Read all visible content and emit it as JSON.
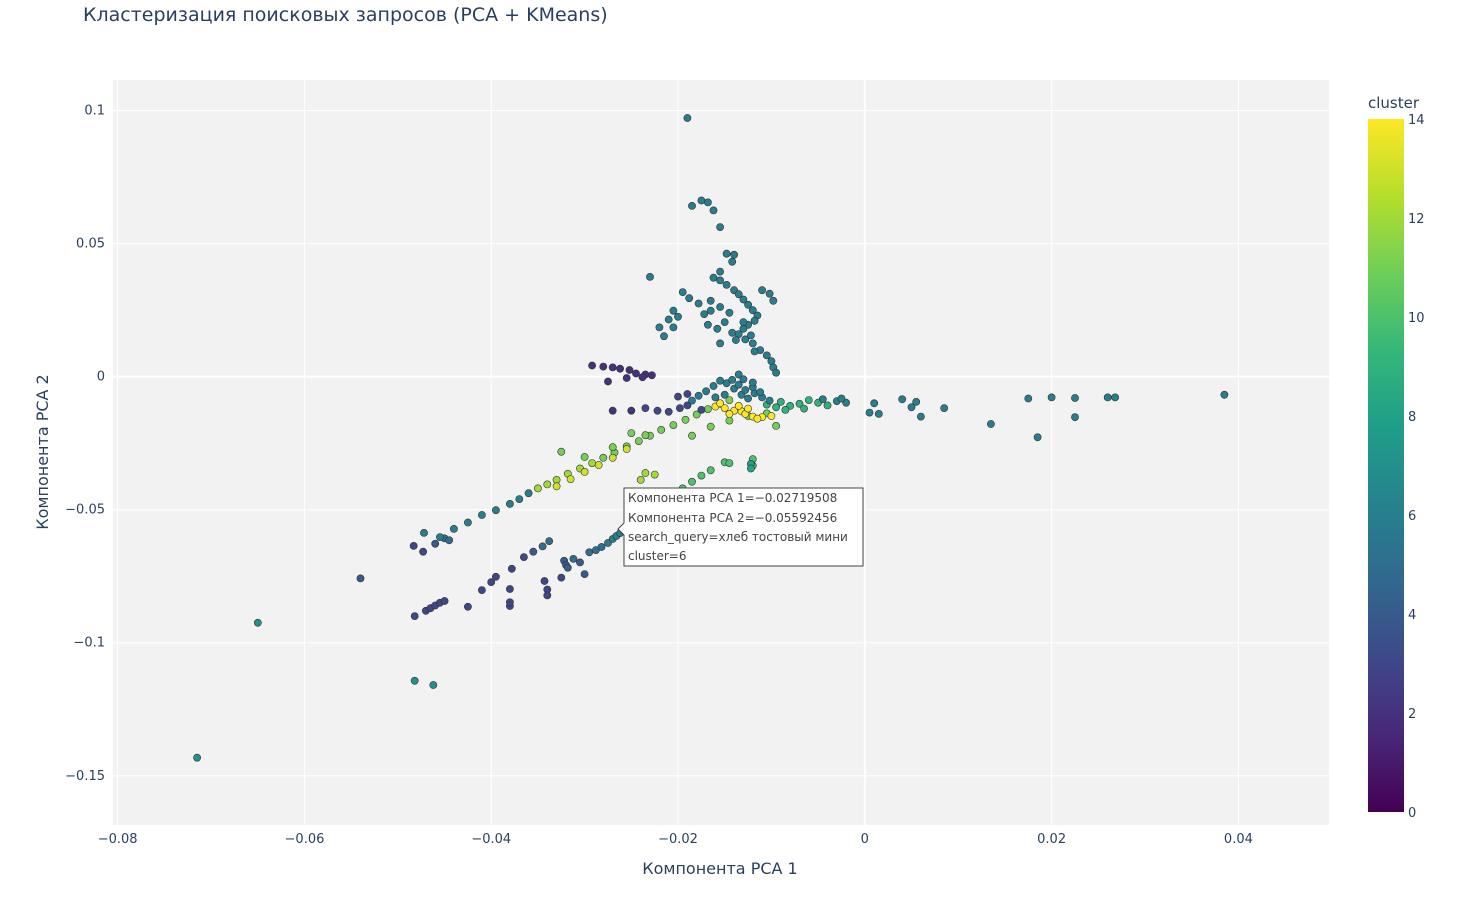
{
  "chart_data": {
    "type": "scatter",
    "title": "Кластеризация поисковых запросов (PCA + KMeans)",
    "xlabel": "Компонента PCA 1",
    "ylabel": "Компонента PCA 2",
    "xlim": [
      -0.0805,
      0.0497
    ],
    "ylim": [
      -0.1685,
      0.1115
    ],
    "x_ticks": [
      -0.08,
      -0.06,
      -0.04,
      -0.02,
      0,
      0.02,
      0.04
    ],
    "x_tick_labels": [
      "−0.08",
      "−0.06",
      "−0.04",
      "−0.02",
      "0",
      "0.02",
      "0.04"
    ],
    "y_ticks": [
      -0.15,
      -0.1,
      -0.05,
      0,
      0.05,
      0.1
    ],
    "y_tick_labels": [
      "−0.15",
      "−0.1",
      "−0.05",
      "0",
      "0.05",
      "0.1"
    ],
    "grid": true,
    "colorbar": {
      "title": "cluster",
      "min": 0,
      "max": 14,
      "ticks": [
        0,
        2,
        4,
        6,
        8,
        10,
        12,
        14
      ],
      "tick_labels": [
        "0",
        "2",
        "4",
        "6",
        "8",
        "10",
        "12",
        "14"
      ],
      "colorscale": [
        "#440154",
        "#482878",
        "#3e4989",
        "#31688e",
        "#26828e",
        "#1f9e89",
        "#35b779",
        "#6ece58",
        "#b5de2b",
        "#fde725"
      ]
    },
    "point_columns": [
      "x",
      "y",
      "cluster"
    ],
    "points": [
      [
        -0.0715,
        -0.1432,
        7
      ],
      [
        -0.065,
        -0.0925,
        7
      ],
      [
        -0.054,
        -0.0758,
        4
      ],
      [
        -0.0482,
        -0.1143,
        7
      ],
      [
        -0.0462,
        -0.1159,
        7
      ],
      [
        -0.0482,
        -0.09,
        3
      ],
      [
        -0.047,
        -0.088,
        3
      ],
      [
        -0.0465,
        -0.087,
        3
      ],
      [
        -0.046,
        -0.086,
        3
      ],
      [
        -0.0455,
        -0.085,
        3
      ],
      [
        -0.045,
        -0.0843,
        3
      ],
      [
        -0.0425,
        -0.0865,
        3
      ],
      [
        -0.0483,
        -0.0636,
        3
      ],
      [
        -0.0473,
        -0.0658,
        3
      ],
      [
        -0.046,
        -0.0628,
        4
      ],
      [
        -0.045,
        -0.0608,
        5
      ],
      [
        -0.0445,
        -0.0615,
        5
      ],
      [
        -0.041,
        -0.0802,
        3
      ],
      [
        -0.04,
        -0.0772,
        3
      ],
      [
        -0.0395,
        -0.0752,
        3
      ],
      [
        -0.038,
        -0.0798,
        3
      ],
      [
        -0.038,
        -0.0862,
        3
      ],
      [
        -0.038,
        -0.0848,
        3
      ],
      [
        -0.0378,
        -0.0722,
        3
      ],
      [
        -0.0365,
        -0.0678,
        3
      ],
      [
        -0.0355,
        -0.0658,
        4
      ],
      [
        -0.0345,
        -0.0638,
        5
      ],
      [
        -0.0343,
        -0.0768,
        3
      ],
      [
        -0.034,
        -0.08,
        3
      ],
      [
        -0.034,
        -0.0822,
        3
      ],
      [
        -0.0338,
        -0.0618,
        5
      ],
      [
        -0.0325,
        -0.0755,
        3
      ],
      [
        -0.0322,
        -0.0692,
        4
      ],
      [
        -0.032,
        -0.0708,
        4
      ],
      [
        -0.0318,
        -0.0718,
        4
      ],
      [
        -0.0312,
        -0.0685,
        5
      ],
      [
        -0.0305,
        -0.0698,
        4
      ],
      [
        -0.03,
        -0.0742,
        4
      ],
      [
        -0.0295,
        -0.066,
        5
      ],
      [
        -0.0288,
        -0.0652,
        5
      ],
      [
        -0.0282,
        -0.064,
        5
      ],
      [
        -0.0275,
        -0.0625,
        6
      ],
      [
        -0.027,
        -0.061,
        6
      ],
      [
        -0.0266,
        -0.0599,
        6
      ],
      [
        -0.0262,
        -0.0588,
        6
      ],
      [
        -0.0258,
        -0.0578,
        6
      ],
      [
        -0.0252,
        -0.0564,
        6
      ],
      [
        -0.0247,
        -0.0552,
        6
      ],
      [
        -0.0245,
        -0.0545,
        9
      ],
      [
        -0.024,
        -0.0532,
        9
      ],
      [
        -0.0235,
        -0.052,
        9
      ],
      [
        -0.0225,
        -0.0492,
        10
      ],
      [
        -0.0215,
        -0.0462,
        10
      ],
      [
        -0.0205,
        -0.044,
        10
      ],
      [
        -0.0195,
        -0.042,
        10
      ],
      [
        -0.0185,
        -0.0395,
        10
      ],
      [
        -0.0175,
        -0.0372,
        10
      ],
      [
        -0.0165,
        -0.0352,
        10
      ],
      [
        -0.015,
        -0.0322,
        10
      ],
      [
        -0.0145,
        -0.0325,
        10
      ],
      [
        -0.012,
        -0.0335,
        10
      ],
      [
        -0.012,
        -0.031,
        10
      ],
      [
        -0.0472,
        -0.0587,
        6
      ],
      [
        -0.0455,
        -0.0603,
        6
      ],
      [
        -0.044,
        -0.0572,
        6
      ],
      [
        -0.0425,
        -0.0548,
        6
      ],
      [
        -0.041,
        -0.052,
        6
      ],
      [
        -0.0395,
        -0.0502,
        6
      ],
      [
        -0.038,
        -0.0478,
        6
      ],
      [
        -0.037,
        -0.046,
        6
      ],
      [
        -0.036,
        -0.0438,
        6
      ],
      [
        -0.035,
        -0.042,
        12
      ],
      [
        -0.034,
        -0.0405,
        12
      ],
      [
        -0.033,
        -0.0388,
        12
      ],
      [
        -0.0318,
        -0.0365,
        12
      ],
      [
        -0.0305,
        -0.0345,
        12
      ],
      [
        -0.0292,
        -0.0325,
        12
      ],
      [
        -0.028,
        -0.0305,
        11
      ],
      [
        -0.0268,
        -0.0285,
        11
      ],
      [
        -0.0255,
        -0.0262,
        11
      ],
      [
        -0.0242,
        -0.0242,
        11
      ],
      [
        -0.023,
        -0.0222,
        11
      ],
      [
        -0.0218,
        -0.02,
        11
      ],
      [
        -0.0205,
        -0.0182,
        11
      ],
      [
        -0.0192,
        -0.0162,
        11
      ],
      [
        -0.018,
        -0.0142,
        11
      ],
      [
        -0.0168,
        -0.0122,
        11
      ],
      [
        -0.0155,
        -0.0102,
        11
      ],
      [
        -0.0145,
        -0.0088,
        11
      ],
      [
        -0.03,
        -0.0302,
        11
      ],
      [
        -0.0325,
        -0.0282,
        11
      ],
      [
        -0.025,
        -0.0212,
        11
      ],
      [
        -0.0235,
        -0.022,
        11
      ],
      [
        -0.027,
        -0.0265,
        11
      ],
      [
        -0.033,
        -0.0412,
        13
      ],
      [
        -0.0315,
        -0.0385,
        13
      ],
      [
        -0.03,
        -0.0358,
        13
      ],
      [
        -0.0285,
        -0.0332,
        13
      ],
      [
        -0.027,
        -0.0305,
        13
      ],
      [
        -0.0255,
        -0.0272,
        13
      ],
      [
        -0.024,
        -0.0388,
        12
      ],
      [
        -0.0235,
        -0.0362,
        12
      ],
      [
        -0.0225,
        -0.0368,
        12
      ],
      [
        -0.0185,
        -0.0222,
        11
      ],
      [
        -0.0165,
        -0.0188,
        11
      ],
      [
        -0.0145,
        -0.0165,
        11
      ],
      [
        -0.0125,
        -0.0148,
        11
      ],
      [
        -0.0105,
        -0.0138,
        11
      ],
      [
        -0.0095,
        -0.0185,
        11
      ],
      [
        -0.016,
        -0.0112,
        14
      ],
      [
        -0.015,
        -0.0118,
        14
      ],
      [
        -0.014,
        -0.0128,
        14
      ],
      [
        -0.0132,
        -0.013,
        14
      ],
      [
        -0.0128,
        -0.014,
        14
      ],
      [
        -0.012,
        -0.015,
        14
      ],
      [
        -0.011,
        -0.0152,
        14
      ],
      [
        -0.01,
        -0.0148,
        14
      ],
      [
        -0.0115,
        -0.0158,
        14
      ],
      [
        -0.0145,
        -0.014,
        14
      ],
      [
        -0.0135,
        -0.011,
        14
      ],
      [
        -0.0125,
        -0.012,
        14
      ],
      [
        -0.0155,
        -0.01,
        14
      ],
      [
        -0.009,
        -0.0095,
        9
      ],
      [
        -0.008,
        -0.011,
        9
      ],
      [
        -0.007,
        -0.0102,
        9
      ],
      [
        -0.006,
        -0.0088,
        9
      ],
      [
        -0.005,
        -0.0098,
        9
      ],
      [
        -0.004,
        -0.0108,
        9
      ],
      [
        -0.0095,
        -0.0115,
        9
      ],
      [
        -0.0085,
        -0.0125,
        9
      ],
      [
        -0.0105,
        -0.0105,
        9
      ],
      [
        -0.0065,
        -0.012,
        9
      ],
      [
        -0.0185,
        -0.009,
        6
      ],
      [
        -0.0178,
        -0.0072,
        6
      ],
      [
        -0.017,
        -0.0055,
        6
      ],
      [
        -0.0162,
        -0.0035,
        6
      ],
      [
        -0.0155,
        -0.0015,
        6
      ],
      [
        -0.0148,
        -0.0025,
        6
      ],
      [
        -0.014,
        -0.0045,
        6
      ],
      [
        -0.0132,
        -0.0068,
        6
      ],
      [
        -0.0125,
        -0.0082,
        6
      ],
      [
        -0.0118,
        -0.0062,
        6
      ],
      [
        -0.011,
        -0.0078,
        6
      ],
      [
        -0.0102,
        -0.009,
        6
      ],
      [
        -0.015,
        -0.0068,
        6
      ],
      [
        -0.016,
        -0.0078,
        6
      ],
      [
        -0.0142,
        -0.0012,
        6
      ],
      [
        -0.0135,
        -0.003,
        6
      ],
      [
        -0.0128,
        -0.005,
        6
      ],
      [
        -0.012,
        -0.004,
        6
      ],
      [
        -0.0112,
        -0.0058,
        6
      ],
      [
        -0.0135,
        0.0008,
        6
      ],
      [
        -0.013,
        -0.001,
        6
      ],
      [
        -0.012,
        -0.0022,
        6
      ],
      [
        -0.003,
        -0.0092,
        6
      ],
      [
        -0.002,
        -0.0098,
        6
      ],
      [
        -0.0045,
        -0.0085,
        6
      ],
      [
        -0.0025,
        -0.0082,
        6
      ],
      [
        -0.019,
        -0.0108,
        3
      ],
      [
        -0.0198,
        -0.0118,
        3
      ],
      [
        -0.021,
        -0.0132,
        3
      ],
      [
        -0.0222,
        -0.0128,
        3
      ],
      [
        -0.0235,
        -0.0118,
        3
      ],
      [
        -0.019,
        -0.0065,
        3
      ],
      [
        -0.02,
        -0.0075,
        3
      ],
      [
        -0.0175,
        -0.0125,
        3
      ],
      [
        -0.025,
        -0.0128,
        2
      ],
      [
        -0.027,
        -0.0128,
        2
      ],
      [
        -0.0292,
        0.0042,
        2
      ],
      [
        -0.028,
        0.0038,
        2
      ],
      [
        -0.027,
        0.0035,
        2
      ],
      [
        -0.0262,
        0.003,
        2
      ],
      [
        -0.0252,
        0.0025,
        2
      ],
      [
        -0.0245,
        0.0012,
        2
      ],
      [
        -0.0235,
        0.0008,
        2
      ],
      [
        -0.0275,
        -0.0018,
        2
      ],
      [
        -0.0255,
        -0.0005,
        2
      ],
      [
        -0.0238,
        -0.0002,
        2
      ],
      [
        -0.0228,
        0.0005,
        2
      ],
      [
        -0.019,
        0.0972,
        6
      ],
      [
        -0.0185,
        0.0642,
        6
      ],
      [
        -0.0175,
        0.0662,
        6
      ],
      [
        -0.0168,
        0.0655,
        6
      ],
      [
        -0.0162,
        0.0625,
        6
      ],
      [
        -0.0155,
        0.0562,
        6
      ],
      [
        -0.0148,
        0.0462,
        6
      ],
      [
        -0.014,
        0.0458,
        6
      ],
      [
        -0.0142,
        0.0432,
        6
      ],
      [
        -0.0155,
        0.0395,
        6
      ],
      [
        -0.0162,
        0.0372,
        6
      ],
      [
        -0.0155,
        0.0362,
        6
      ],
      [
        -0.0148,
        0.0345,
        6
      ],
      [
        -0.014,
        0.0325,
        6
      ],
      [
        -0.0135,
        0.031,
        6
      ],
      [
        -0.013,
        0.029,
        6
      ],
      [
        -0.0125,
        0.027,
        6
      ],
      [
        -0.012,
        0.025,
        6
      ],
      [
        -0.0115,
        0.023,
        6
      ],
      [
        -0.0118,
        0.021,
        6
      ],
      [
        -0.0125,
        0.0195,
        6
      ],
      [
        -0.013,
        0.018,
        6
      ],
      [
        -0.0135,
        0.016,
        6
      ],
      [
        -0.0128,
        0.014,
        6
      ],
      [
        -0.012,
        0.0125,
        6
      ],
      [
        -0.0112,
        0.01,
        6
      ],
      [
        -0.0105,
        0.008,
        6
      ],
      [
        -0.01,
        0.0058,
        6
      ],
      [
        -0.0098,
        0.0035,
        6
      ],
      [
        -0.0095,
        0.0015,
        6
      ],
      [
        -0.0165,
        0.0285,
        6
      ],
      [
        -0.0172,
        0.0235,
        6
      ],
      [
        -0.0178,
        0.0275,
        6
      ],
      [
        -0.0165,
        0.0248,
        6
      ],
      [
        -0.0155,
        0.0262,
        6
      ],
      [
        -0.0145,
        0.024,
        6
      ],
      [
        -0.015,
        0.0205,
        6
      ],
      [
        -0.0158,
        0.018,
        6
      ],
      [
        -0.011,
        0.0325,
        6
      ],
      [
        -0.0102,
        0.0312,
        6
      ],
      [
        -0.0195,
        0.0318,
        6
      ],
      [
        -0.0188,
        0.0295,
        6
      ],
      [
        -0.0205,
        0.0248,
        6
      ],
      [
        -0.02,
        0.0225,
        6
      ],
      [
        -0.021,
        0.0215,
        6
      ],
      [
        -0.0205,
        0.0185,
        6
      ],
      [
        -0.022,
        0.0185,
        6
      ],
      [
        -0.0215,
        0.0152,
        6
      ],
      [
        -0.023,
        0.0375,
        6
      ],
      [
        -0.0168,
        0.0195,
        6
      ],
      [
        -0.0142,
        0.0165,
        6
      ],
      [
        -0.0138,
        0.0138,
        6
      ],
      [
        -0.013,
        0.0205,
        6
      ],
      [
        -0.0122,
        0.0155,
        6
      ],
      [
        -0.0098,
        0.0285,
        6
      ],
      [
        -0.0118,
        0.0095,
        6
      ],
      [
        -0.0155,
        0.0125,
        6
      ],
      [
        0.001,
        -0.01,
        6
      ],
      [
        0.0015,
        -0.014,
        6
      ],
      [
        0.0005,
        -0.0135,
        6
      ],
      [
        0.004,
        -0.0085,
        6
      ],
      [
        0.005,
        -0.0115,
        6
      ],
      [
        0.0055,
        -0.0095,
        6
      ],
      [
        0.006,
        -0.015,
        6
      ],
      [
        0.0085,
        -0.0118,
        6
      ],
      [
        0.0135,
        -0.0178,
        6
      ],
      [
        0.0175,
        -0.0082,
        6
      ],
      [
        0.0185,
        -0.0228,
        6
      ],
      [
        0.02,
        -0.0078,
        6
      ],
      [
        0.0225,
        -0.008,
        6
      ],
      [
        0.0225,
        -0.0152,
        6
      ],
      [
        0.026,
        -0.0078,
        6
      ],
      [
        0.0268,
        -0.0078,
        6
      ],
      [
        0.0385,
        -0.0068,
        6
      ],
      [
        -0.0122,
        -0.0328,
        8
      ],
      [
        -0.0122,
        -0.0345,
        8
      ]
    ]
  },
  "tooltip": {
    "lines": [
      "Компонента PCA 1=−0.02719508",
      "Компонента PCA 2=−0.05592456",
      "search_query=хлеб тостовый мини",
      "cluster=6"
    ]
  }
}
